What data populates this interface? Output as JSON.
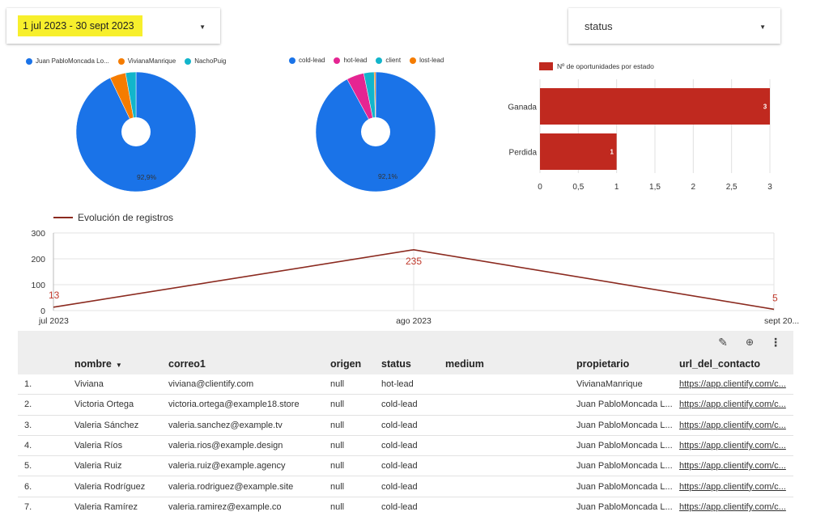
{
  "controls": {
    "date_range": "1 jul 2023 - 30 sept 2023",
    "status_filter": "status"
  },
  "colors": {
    "blue": "#1a73e8",
    "orange": "#f57c00",
    "teal": "#12b5cb",
    "pink": "#e52592",
    "bar_red": "#c0291f",
    "line_red": "#8b2a1f",
    "highlight_yellow": "#f7ef2c"
  },
  "pie1": {
    "legend": [
      "Juan PabloMoncada Lo...",
      "VivianaManrique",
      "NachoPuig"
    ],
    "center_label": "92,9%"
  },
  "pie2": {
    "legend": [
      "cold-lead",
      "hot-lead",
      "client",
      "lost-lead"
    ],
    "center_label": "92,1%"
  },
  "bar": {
    "legend": "Nº de oportunidades por estado",
    "x_ticks": [
      "0",
      "0,5",
      "1",
      "1,5",
      "2",
      "2,5",
      "3"
    ]
  },
  "line": {
    "legend": "Evolución de registros",
    "y_ticks": [
      "300",
      "200",
      "100",
      "0"
    ],
    "x_ticks": [
      "jul 2023",
      "ago 2023",
      "sept 20..."
    ],
    "point_labels": [
      "13",
      "235",
      "5"
    ]
  },
  "chart_data": [
    {
      "type": "pie",
      "categories": [
        "Juan PabloMoncada Lo...",
        "VivianaManrique",
        "NachoPuig"
      ],
      "values": [
        92.9,
        4.3,
        2.8
      ],
      "colors": [
        "#1a73e8",
        "#f57c00",
        "#12b5cb"
      ],
      "donut": true,
      "legend": "top"
    },
    {
      "type": "pie",
      "categories": [
        "cold-lead",
        "hot-lead",
        "client",
        "lost-lead"
      ],
      "values": [
        92.1,
        4.7,
        2.8,
        0.4
      ],
      "colors": [
        "#1a73e8",
        "#e52592",
        "#12b5cb",
        "#f57c00"
      ],
      "donut": true,
      "legend": "top"
    },
    {
      "type": "bar",
      "orientation": "horizontal",
      "categories": [
        "Ganada",
        "Perdida"
      ],
      "series": [
        {
          "name": "Nº de oportunidades por estado",
          "values": [
            3,
            1
          ]
        }
      ],
      "xlim": [
        0,
        3
      ],
      "grid": true,
      "legend": "top-left"
    },
    {
      "type": "line",
      "x": [
        "jul 2023",
        "ago 2023",
        "sept 20..."
      ],
      "series": [
        {
          "name": "Evolución de registros",
          "values": [
            13,
            235,
            5
          ]
        }
      ],
      "ylim": [
        0,
        300
      ],
      "grid": true,
      "legend": "top-left"
    }
  ],
  "table": {
    "columns": [
      "nombre",
      "correo1",
      "origen",
      "status",
      "medium",
      "propietario",
      "url_del_contacto"
    ],
    "sort_icon": "caret-down-icon",
    "rows": [
      [
        "1.",
        "Viviana",
        "viviana@clientify.com",
        "null",
        "hot-lead",
        "",
        "VivianaManrique",
        "https://app.clientify.com/c..."
      ],
      [
        "2.",
        "Victoria Ortega",
        "victoria.ortega@example18.store",
        "null",
        "cold-lead",
        "",
        "Juan PabloMoncada L...",
        "https://app.clientify.com/c..."
      ],
      [
        "3.",
        "Valeria Sánchez",
        "valeria.sanchez@example.tv",
        "null",
        "cold-lead",
        "",
        "Juan PabloMoncada L...",
        "https://app.clientify.com/c..."
      ],
      [
        "4.",
        "Valeria Ríos",
        "valeria.rios@example.design",
        "null",
        "cold-lead",
        "",
        "Juan PabloMoncada L...",
        "https://app.clientify.com/c..."
      ],
      [
        "5.",
        "Valeria Ruiz",
        "valeria.ruiz@example.agency",
        "null",
        "cold-lead",
        "",
        "Juan PabloMoncada L...",
        "https://app.clientify.com/c..."
      ],
      [
        "6.",
        "Valeria Rodríguez",
        "valeria.rodriguez@example.site",
        "null",
        "cold-lead",
        "",
        "Juan PabloMoncada L...",
        "https://app.clientify.com/c..."
      ],
      [
        "7.",
        "Valeria Ramírez",
        "valeria.ramirez@example.co",
        "null",
        "cold-lead",
        "",
        "Juan PabloMoncada L...",
        "https://app.clientify.com/c..."
      ]
    ]
  },
  "toolbar_icons": [
    "pencil-icon",
    "zoom-icon",
    "more-vert-icon"
  ]
}
